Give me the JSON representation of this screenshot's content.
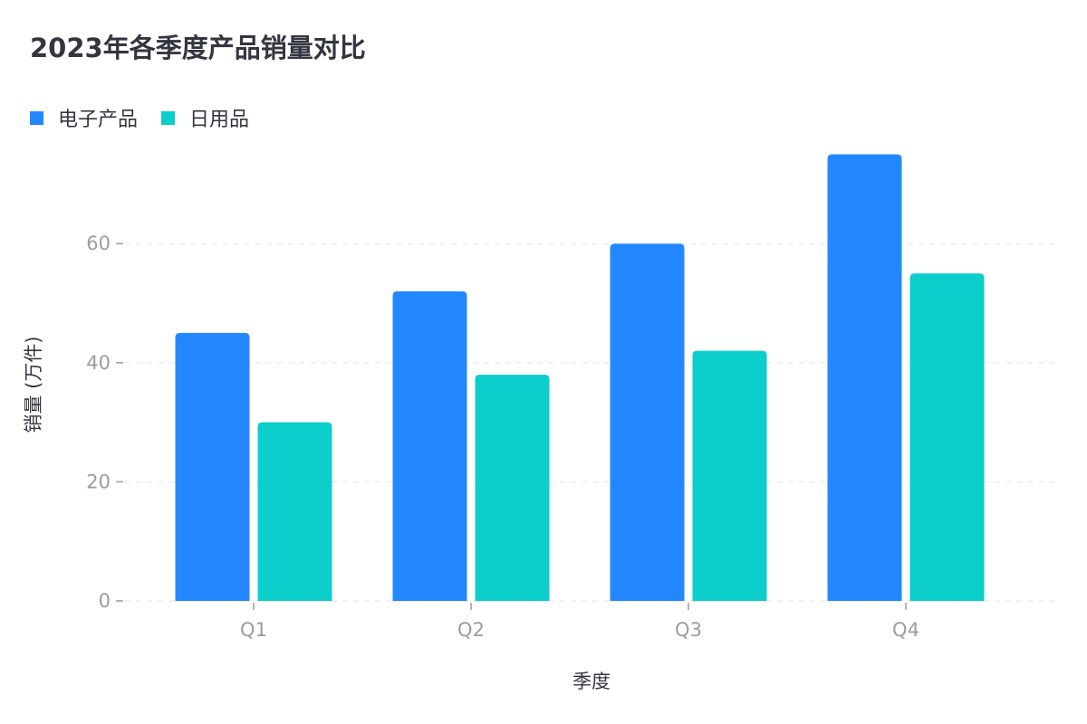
{
  "chart_data": {
    "type": "bar",
    "title": "2023年各季度产品销量对比",
    "xlabel": "季度",
    "ylabel": "销量 (万件)",
    "categories": [
      "Q1",
      "Q2",
      "Q3",
      "Q4"
    ],
    "series": [
      {
        "name": "电子产品",
        "color": "#2388ff",
        "values": [
          45,
          52,
          60,
          75
        ]
      },
      {
        "name": "日用品",
        "color": "#0ccecb",
        "values": [
          30,
          38,
          42,
          55
        ]
      }
    ],
    "ylim": [
      0,
      80
    ],
    "yticks": [
      0,
      20,
      40,
      60
    ],
    "grid": true,
    "legend_position": "top-left"
  }
}
